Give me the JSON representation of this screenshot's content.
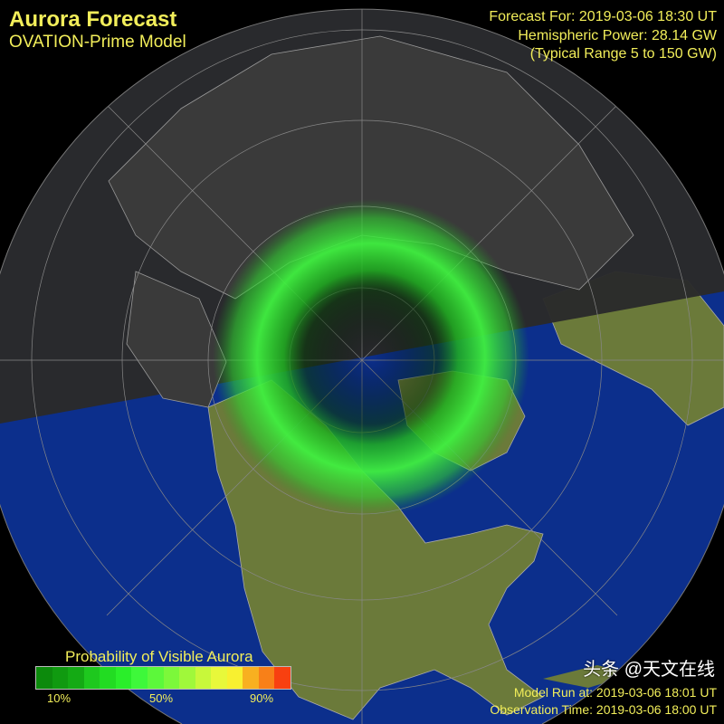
{
  "header": {
    "title": "Aurora Forecast",
    "subtitle": "OVATION-Prime Model",
    "forecast_for": "Forecast For: 2019-03-06 18:30 UT",
    "hemispheric_power": "Hemispheric Power: 28.14 GW",
    "typical_range": "(Typical Range 5 to 150 GW)"
  },
  "legend": {
    "title": "Probability of Visible Aurora",
    "ticks": [
      "10%",
      "50%",
      "90%"
    ],
    "colors": [
      "#0c8a0c",
      "#109a10",
      "#14aa14",
      "#1ec81e",
      "#22dc22",
      "#2aee2a",
      "#3ef83a",
      "#5cf83a",
      "#7cf83a",
      "#a0f83a",
      "#c8f83a",
      "#e8f83a",
      "#f8f030",
      "#f8b020",
      "#f88018",
      "#f84010"
    ]
  },
  "footer": {
    "model_run": "Model Run at: 2019-03-06 18:01 UT",
    "observation_time": "Observation Time: 2019-03-06 18:00 UT",
    "watermark": "头条 @天文在线"
  },
  "map": {
    "projection": "north polar",
    "night_color": "#2a2a2a",
    "ocean_color": "#0c2f8c",
    "land_color": "#6b7a3a",
    "aurora_color": "#3cf23c"
  }
}
